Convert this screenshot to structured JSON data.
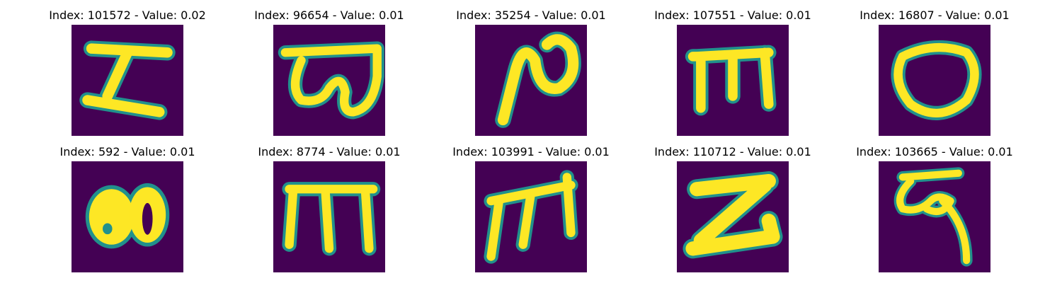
{
  "colors": {
    "background": "#440154",
    "mid": "#21918c",
    "ink": "#fde725"
  },
  "panels": [
    {
      "title": "Index: 101572 - Value: 0.02",
      "glyph": "glyph-z-like"
    },
    {
      "title": "Index: 96654 - Value: 0.01",
      "glyph": "glyph-hooked"
    },
    {
      "title": "Index: 35254 - Value: 0.01",
      "glyph": "glyph-loop-stroke"
    },
    {
      "title": "Index: 107551 - Value: 0.01",
      "glyph": "glyph-three-prong"
    },
    {
      "title": "Index: 16807 - Value: 0.01",
      "glyph": "glyph-oval"
    },
    {
      "title": "Index: 592 - Value: 0.01",
      "glyph": "glyph-double-blob"
    },
    {
      "title": "Index: 8774 - Value: 0.01",
      "glyph": "glyph-comb"
    },
    {
      "title": "Index: 103991 - Value: 0.01",
      "glyph": "glyph-slanted-comb"
    },
    {
      "title": "Index: 110712 - Value: 0.01",
      "glyph": "glyph-z-bar"
    },
    {
      "title": "Index: 103665 - Value: 0.01",
      "glyph": "glyph-curl-tail"
    }
  ]
}
